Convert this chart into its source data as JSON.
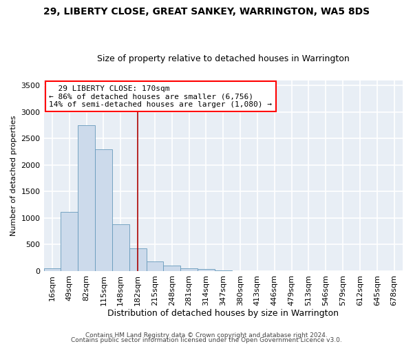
{
  "title": "29, LIBERTY CLOSE, GREAT SANKEY, WARRINGTON, WA5 8DS",
  "subtitle": "Size of property relative to detached houses in Warrington",
  "xlabel": "Distribution of detached houses by size in Warrington",
  "ylabel": "Number of detached properties",
  "bar_color": "#ccdaeb",
  "bar_edge_color": "#6699bb",
  "background_color": "#e8eef5",
  "grid_color": "#ffffff",
  "categories": [
    "16sqm",
    "49sqm",
    "82sqm",
    "115sqm",
    "148sqm",
    "182sqm",
    "215sqm",
    "248sqm",
    "281sqm",
    "314sqm",
    "347sqm",
    "380sqm",
    "413sqm",
    "446sqm",
    "479sqm",
    "513sqm",
    "546sqm",
    "579sqm",
    "612sqm",
    "645sqm",
    "678sqm"
  ],
  "values": [
    50,
    1110,
    2750,
    2300,
    880,
    430,
    180,
    100,
    55,
    35,
    15,
    5,
    3,
    1,
    0,
    0,
    0,
    0,
    0,
    0,
    0
  ],
  "ylim": [
    0,
    3600
  ],
  "yticks": [
    0,
    500,
    1000,
    1500,
    2000,
    2500,
    3000,
    3500
  ],
  "property_label": "29 LIBERTY CLOSE: 170sqm",
  "pct_smaller": 86,
  "count_smaller": 6756,
  "pct_larger": 14,
  "count_larger": 1080,
  "vline_bin": 5,
  "footer_line1": "Contains HM Land Registry data © Crown copyright and database right 2024.",
  "footer_line2": "Contains public sector information licensed under the Open Government Licence v3.0.",
  "title_fontsize": 10,
  "subtitle_fontsize": 9,
  "xlabel_fontsize": 9,
  "ylabel_fontsize": 8,
  "tick_fontsize": 8,
  "annotation_fontsize": 8,
  "footer_fontsize": 6.5
}
